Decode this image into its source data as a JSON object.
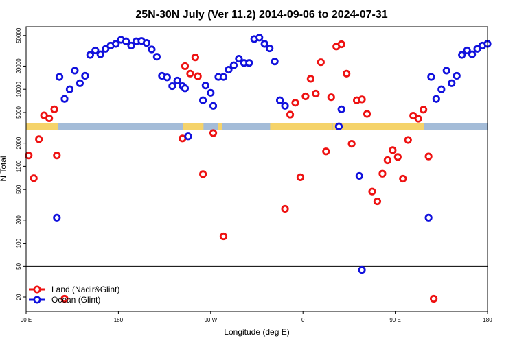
{
  "chart_data": {
    "type": "scatter",
    "title": "25N-30N July (Ver 11.2)   2014-09-06 to 2024-07-31",
    "xlabel": "Longitude (deg E)",
    "ylabel": "N Total",
    "x_scale": "linear",
    "y_scale": "log",
    "xlim": [
      90,
      540
    ],
    "ylim": [
      13,
      65000
    ],
    "x_ticks": [
      {
        "value": 90,
        "label": "90 E"
      },
      {
        "value": 180,
        "label": "180"
      },
      {
        "value": 270,
        "label": "90 W"
      },
      {
        "value": 360,
        "label": "0"
      },
      {
        "value": 450,
        "label": "90 E"
      },
      {
        "value": 540,
        "label": "180"
      }
    ],
    "y_ticks": [
      {
        "value": 20,
        "label": "20"
      },
      {
        "value": 50,
        "label": "50"
      },
      {
        "value": 100,
        "label": "100"
      },
      {
        "value": 200,
        "label": "200"
      },
      {
        "value": 500,
        "label": "500"
      },
      {
        "value": 1000,
        "label": "1000"
      },
      {
        "value": 2000,
        "label": "2000"
      },
      {
        "value": 5000,
        "label": "5000"
      },
      {
        "value": 10000,
        "label": "10000"
      },
      {
        "value": 20000,
        "label": "20000"
      },
      {
        "value": 50000,
        "label": "50000"
      }
    ],
    "reference_line": {
      "y": 50,
      "color": "#000000"
    },
    "legend": {
      "position": "bottom-left"
    },
    "series": [
      {
        "name": "Land (Nadir&Glint)",
        "color": "#ee1111",
        "points": [
          [
            92.5,
            1380
          ],
          [
            97.5,
            700
          ],
          [
            102.5,
            2250
          ],
          [
            107.5,
            4600
          ],
          [
            112.5,
            4200
          ],
          [
            117.5,
            5500
          ],
          [
            120,
            1380
          ],
          [
            127.5,
            19
          ],
          [
            242.5,
            2300
          ],
          [
            245,
            20000
          ],
          [
            250,
            16000
          ],
          [
            255,
            26000
          ],
          [
            257.5,
            14800
          ],
          [
            262.5,
            790
          ],
          [
            272.5,
            2700
          ],
          [
            282.5,
            123
          ],
          [
            342.5,
            280
          ],
          [
            347.5,
            4700
          ],
          [
            352.5,
            6700
          ],
          [
            357.5,
            720
          ],
          [
            362.5,
            8100
          ],
          [
            367.5,
            13700
          ],
          [
            372.5,
            8800
          ],
          [
            377.5,
            22500
          ],
          [
            382.5,
            1560
          ],
          [
            387.5,
            7900
          ],
          [
            392.5,
            36000
          ],
          [
            397.5,
            38500
          ],
          [
            402.5,
            16000
          ],
          [
            407.5,
            1960
          ],
          [
            412.5,
            7200
          ],
          [
            417.5,
            7400
          ],
          [
            422.5,
            4800
          ],
          [
            427.5,
            470
          ],
          [
            432.5,
            350
          ],
          [
            437.5,
            800
          ],
          [
            442.5,
            1200
          ],
          [
            447.5,
            1620
          ],
          [
            452.5,
            1320
          ],
          [
            457.5,
            690
          ],
          [
            462.5,
            2200
          ],
          [
            467.5,
            4550
          ],
          [
            472.5,
            4150
          ],
          [
            477.5,
            5450
          ],
          [
            482.5,
            1340
          ],
          [
            487.5,
            19
          ]
        ]
      },
      {
        "name": "Ocean (Glint)",
        "color": "#1111dd",
        "points": [
          [
            120,
            215
          ],
          [
            122.5,
            14500
          ],
          [
            127.5,
            7500
          ],
          [
            132.5,
            10000
          ],
          [
            137.5,
            17500
          ],
          [
            142.5,
            12000
          ],
          [
            147.5,
            15000
          ],
          [
            152.5,
            28000
          ],
          [
            157.5,
            32000
          ],
          [
            162.5,
            28500
          ],
          [
            167.5,
            33500
          ],
          [
            172.5,
            37000
          ],
          [
            177.5,
            39000
          ],
          [
            182.5,
            44000
          ],
          [
            187.5,
            42000
          ],
          [
            192.5,
            37000
          ],
          [
            197.5,
            42000
          ],
          [
            202.5,
            42500
          ],
          [
            207.5,
            40000
          ],
          [
            212.5,
            33000
          ],
          [
            217.5,
            26500
          ],
          [
            222.5,
            15000
          ],
          [
            227.5,
            14300
          ],
          [
            232.5,
            11000
          ],
          [
            237.5,
            13000
          ],
          [
            242.5,
            11000
          ],
          [
            245,
            10300
          ],
          [
            248,
            2450
          ],
          [
            262.5,
            7200
          ],
          [
            265,
            11200
          ],
          [
            270,
            9000
          ],
          [
            272.5,
            6100
          ],
          [
            277.5,
            14500
          ],
          [
            282.5,
            14500
          ],
          [
            287.5,
            18000
          ],
          [
            292.5,
            20500
          ],
          [
            297.5,
            25000
          ],
          [
            302.5,
            22000
          ],
          [
            307.5,
            22000
          ],
          [
            312.5,
            45000
          ],
          [
            317.5,
            47000
          ],
          [
            322.5,
            39000
          ],
          [
            327.5,
            34000
          ],
          [
            332.5,
            23000
          ],
          [
            337.5,
            7200
          ],
          [
            342.5,
            6100
          ],
          [
            395,
            3300
          ],
          [
            397.5,
            5500
          ],
          [
            415,
            750
          ],
          [
            417.5,
            45
          ],
          [
            482.5,
            215
          ],
          [
            485,
            14500
          ],
          [
            490,
            7500
          ],
          [
            495,
            10000
          ],
          [
            500,
            17500
          ],
          [
            505,
            12000
          ],
          [
            510,
            15000
          ],
          [
            515,
            28000
          ],
          [
            520,
            32000
          ],
          [
            525,
            28500
          ],
          [
            530,
            33500
          ],
          [
            535,
            37000
          ],
          [
            540,
            39000
          ]
        ]
      }
    ],
    "surface_strip": {
      "y_value": 3300,
      "ocean_color": "#a4bcd8",
      "land_color": "#f5d36a",
      "land_segments": [
        [
          90,
          121
        ],
        [
          243,
          263
        ],
        [
          277,
          281
        ],
        [
          328,
          388
        ],
        [
          389,
          478
        ]
      ]
    }
  }
}
